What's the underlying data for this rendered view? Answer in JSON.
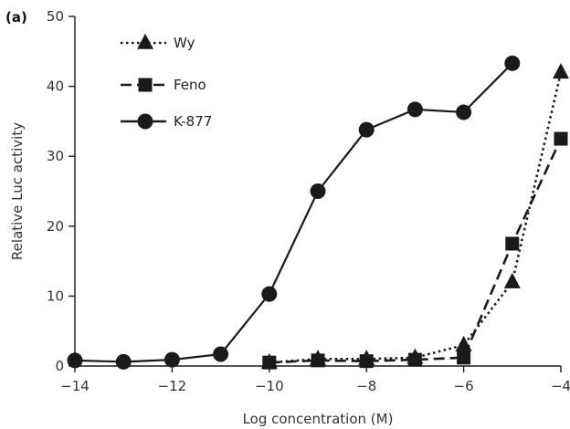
{
  "panel_label": "(a)",
  "chart_data": {
    "type": "line",
    "title": "",
    "xlabel": "Log concentration (M)",
    "ylabel": "Relative Luc activity",
    "xlim": [
      -14,
      -4
    ],
    "ylim": [
      0,
      50
    ],
    "xticks": [
      -14,
      -12,
      -10,
      -8,
      -6,
      -4
    ],
    "xtick_labels": [
      "−14",
      "−12",
      "−10",
      "−8",
      "−6",
      "−4"
    ],
    "yticks": [
      0,
      10,
      20,
      30,
      40,
      50
    ],
    "ytick_labels": [
      "0",
      "10",
      "20",
      "30",
      "40",
      "50"
    ],
    "grid": false,
    "legend_position": "top-left",
    "series": [
      {
        "name": "Wy",
        "marker": "triangle",
        "line_style": "dotted",
        "color": "#1a1a1a",
        "x": [
          -10,
          -9,
          -8,
          -7,
          -6,
          -5,
          -4
        ],
        "y": [
          0.5,
          1.0,
          1.0,
          1.2,
          3.0,
          12.0,
          42.0
        ]
      },
      {
        "name": "Feno",
        "marker": "square",
        "line_style": "dashed",
        "color": "#1a1a1a",
        "x": [
          -10,
          -9,
          -8,
          -7,
          -6,
          -5,
          -4
        ],
        "y": [
          0.5,
          0.8,
          0.7,
          0.9,
          1.2,
          17.5,
          32.5
        ]
      },
      {
        "name": "K-877",
        "marker": "circle",
        "line_style": "solid",
        "color": "#1a1a1a",
        "x": [
          -14,
          -13,
          -12,
          -11,
          -10,
          -9,
          -8,
          -7,
          -6,
          -5
        ],
        "y": [
          0.8,
          0.6,
          0.9,
          1.7,
          10.3,
          25.0,
          33.8,
          36.7,
          36.3,
          43.3
        ]
      }
    ]
  }
}
